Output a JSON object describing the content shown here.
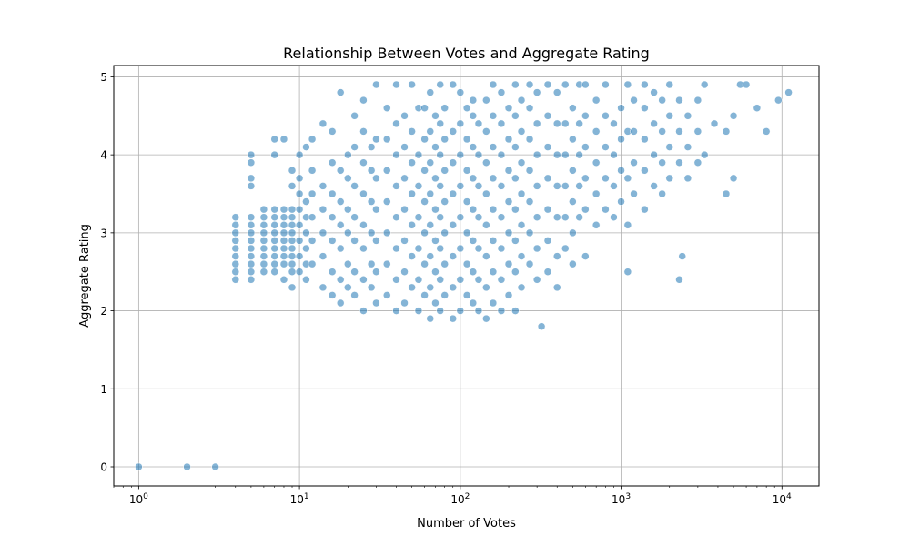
{
  "chart_data": {
    "type": "scatter",
    "title": "Relationship Between Votes and Aggregate Rating",
    "xlabel": "Number of Votes",
    "ylabel": "Aggregate Rating",
    "x_scale": "log",
    "xlim": [
      0.7,
      17000
    ],
    "ylim": [
      -0.245,
      5.145
    ],
    "grid": true,
    "marker_color": "#1f77b4",
    "marker_alpha": 0.55,
    "x_ticks": [
      {
        "value": 1,
        "base": "10",
        "exp": "0"
      },
      {
        "value": 10,
        "base": "10",
        "exp": "1"
      },
      {
        "value": 100,
        "base": "10",
        "exp": "2"
      },
      {
        "value": 1000,
        "base": "10",
        "exp": "3"
      },
      {
        "value": 10000,
        "base": "10",
        "exp": "4"
      }
    ],
    "y_ticks": [
      "0",
      "1",
      "2",
      "3",
      "4",
      "5"
    ],
    "points": [
      [
        1,
        0
      ],
      [
        2,
        0
      ],
      [
        3,
        0
      ],
      [
        4,
        2.4
      ],
      [
        4,
        2.5
      ],
      [
        4,
        2.6
      ],
      [
        4,
        2.7
      ],
      [
        4,
        2.8
      ],
      [
        4,
        2.9
      ],
      [
        4,
        3.0
      ],
      [
        4,
        3.1
      ],
      [
        4,
        3.2
      ],
      [
        5,
        2.4
      ],
      [
        5,
        2.5
      ],
      [
        5,
        2.6
      ],
      [
        5,
        2.7
      ],
      [
        5,
        2.8
      ],
      [
        5,
        2.9
      ],
      [
        5,
        3.0
      ],
      [
        5,
        3.1
      ],
      [
        5,
        3.2
      ],
      [
        5,
        3.6
      ],
      [
        5,
        3.7
      ],
      [
        5,
        3.9
      ],
      [
        5,
        4.0
      ],
      [
        6,
        2.5
      ],
      [
        6,
        2.6
      ],
      [
        6,
        2.7
      ],
      [
        6,
        2.8
      ],
      [
        6,
        2.9
      ],
      [
        6,
        3.0
      ],
      [
        6,
        3.1
      ],
      [
        6,
        3.2
      ],
      [
        6,
        3.3
      ],
      [
        7,
        2.5
      ],
      [
        7,
        2.6
      ],
      [
        7,
        2.7
      ],
      [
        7,
        2.8
      ],
      [
        7,
        2.9
      ],
      [
        7,
        3.0
      ],
      [
        7,
        3.1
      ],
      [
        7,
        3.2
      ],
      [
        7,
        3.3
      ],
      [
        7,
        4.0
      ],
      [
        7,
        4.2
      ],
      [
        8,
        2.4
      ],
      [
        8,
        2.6
      ],
      [
        8,
        2.7
      ],
      [
        8,
        2.8
      ],
      [
        8,
        2.9
      ],
      [
        8,
        3.0
      ],
      [
        8,
        3.1
      ],
      [
        8,
        3.2
      ],
      [
        8,
        3.3
      ],
      [
        8,
        4.2
      ],
      [
        9,
        2.3
      ],
      [
        9,
        2.5
      ],
      [
        9,
        2.6
      ],
      [
        9,
        2.7
      ],
      [
        9,
        2.8
      ],
      [
        9,
        2.9
      ],
      [
        9,
        3.0
      ],
      [
        9,
        3.1
      ],
      [
        9,
        3.2
      ],
      [
        9,
        3.3
      ],
      [
        9,
        3.6
      ],
      [
        9,
        3.8
      ],
      [
        10,
        2.5
      ],
      [
        10,
        2.7
      ],
      [
        10,
        2.9
      ],
      [
        10,
        3.1
      ],
      [
        10,
        3.3
      ],
      [
        10,
        3.5
      ],
      [
        10,
        3.7
      ],
      [
        10,
        4.0
      ],
      [
        11,
        2.4
      ],
      [
        11,
        2.6
      ],
      [
        11,
        2.8
      ],
      [
        11,
        3.0
      ],
      [
        11,
        3.2
      ],
      [
        11,
        3.4
      ],
      [
        11,
        4.1
      ],
      [
        12,
        2.6
      ],
      [
        12,
        2.9
      ],
      [
        12,
        3.2
      ],
      [
        12,
        3.5
      ],
      [
        12,
        3.8
      ],
      [
        12,
        4.2
      ],
      [
        14,
        2.3
      ],
      [
        14,
        2.7
      ],
      [
        14,
        3.0
      ],
      [
        14,
        3.3
      ],
      [
        14,
        3.6
      ],
      [
        14,
        4.4
      ],
      [
        16,
        2.2
      ],
      [
        16,
        2.5
      ],
      [
        16,
        2.9
      ],
      [
        16,
        3.2
      ],
      [
        16,
        3.5
      ],
      [
        16,
        3.9
      ],
      [
        16,
        4.3
      ],
      [
        18,
        2.1
      ],
      [
        18,
        2.4
      ],
      [
        18,
        2.8
      ],
      [
        18,
        3.1
      ],
      [
        18,
        3.4
      ],
      [
        18,
        3.8
      ],
      [
        18,
        4.8
      ],
      [
        20,
        2.3
      ],
      [
        20,
        2.6
      ],
      [
        20,
        3.0
      ],
      [
        20,
        3.3
      ],
      [
        20,
        3.7
      ],
      [
        20,
        4.0
      ],
      [
        22,
        2.2
      ],
      [
        22,
        2.5
      ],
      [
        22,
        2.9
      ],
      [
        22,
        3.2
      ],
      [
        22,
        3.6
      ],
      [
        22,
        4.1
      ],
      [
        22,
        4.5
      ],
      [
        25,
        2.0
      ],
      [
        25,
        2.4
      ],
      [
        25,
        2.8
      ],
      [
        25,
        3.1
      ],
      [
        25,
        3.5
      ],
      [
        25,
        3.9
      ],
      [
        25,
        4.3
      ],
      [
        25,
        4.7
      ],
      [
        28,
        2.3
      ],
      [
        28,
        2.6
      ],
      [
        28,
        3.0
      ],
      [
        28,
        3.4
      ],
      [
        28,
        3.8
      ],
      [
        28,
        4.1
      ],
      [
        30,
        2.1
      ],
      [
        30,
        2.5
      ],
      [
        30,
        2.9
      ],
      [
        30,
        3.3
      ],
      [
        30,
        3.7
      ],
      [
        30,
        4.2
      ],
      [
        30,
        4.9
      ],
      [
        35,
        2.2
      ],
      [
        35,
        2.6
      ],
      [
        35,
        3.0
      ],
      [
        35,
        3.4
      ],
      [
        35,
        3.8
      ],
      [
        35,
        4.2
      ],
      [
        35,
        4.6
      ],
      [
        40,
        2.0
      ],
      [
        40,
        2.4
      ],
      [
        40,
        2.8
      ],
      [
        40,
        3.2
      ],
      [
        40,
        3.6
      ],
      [
        40,
        4.0
      ],
      [
        40,
        4.4
      ],
      [
        40,
        4.9
      ],
      [
        45,
        2.1
      ],
      [
        45,
        2.5
      ],
      [
        45,
        2.9
      ],
      [
        45,
        3.3
      ],
      [
        45,
        3.7
      ],
      [
        45,
        4.1
      ],
      [
        45,
        4.5
      ],
      [
        50,
        2.3
      ],
      [
        50,
        2.7
      ],
      [
        50,
        3.1
      ],
      [
        50,
        3.5
      ],
      [
        50,
        3.9
      ],
      [
        50,
        4.3
      ],
      [
        50,
        4.9
      ],
      [
        55,
        2.0
      ],
      [
        55,
        2.4
      ],
      [
        55,
        2.8
      ],
      [
        55,
        3.2
      ],
      [
        55,
        3.6
      ],
      [
        55,
        4.0
      ],
      [
        55,
        4.6
      ],
      [
        60,
        2.2
      ],
      [
        60,
        2.6
      ],
      [
        60,
        3.0
      ],
      [
        60,
        3.4
      ],
      [
        60,
        3.8
      ],
      [
        60,
        4.2
      ],
      [
        60,
        4.6
      ],
      [
        65,
        1.9
      ],
      [
        65,
        2.3
      ],
      [
        65,
        2.7
      ],
      [
        65,
        3.1
      ],
      [
        65,
        3.5
      ],
      [
        65,
        3.9
      ],
      [
        65,
        4.3
      ],
      [
        65,
        4.8
      ],
      [
        70,
        2.1
      ],
      [
        70,
        2.5
      ],
      [
        70,
        2.9
      ],
      [
        70,
        3.3
      ],
      [
        70,
        3.7
      ],
      [
        70,
        4.1
      ],
      [
        70,
        4.5
      ],
      [
        75,
        2.0
      ],
      [
        75,
        2.4
      ],
      [
        75,
        2.8
      ],
      [
        75,
        3.2
      ],
      [
        75,
        3.6
      ],
      [
        75,
        4.0
      ],
      [
        75,
        4.4
      ],
      [
        75,
        4.9
      ],
      [
        80,
        2.2
      ],
      [
        80,
        2.6
      ],
      [
        80,
        3.0
      ],
      [
        80,
        3.4
      ],
      [
        80,
        3.8
      ],
      [
        80,
        4.2
      ],
      [
        80,
        4.6
      ],
      [
        90,
        1.9
      ],
      [
        90,
        2.3
      ],
      [
        90,
        2.7
      ],
      [
        90,
        3.1
      ],
      [
        90,
        3.5
      ],
      [
        90,
        3.9
      ],
      [
        90,
        4.3
      ],
      [
        90,
        4.9
      ],
      [
        100,
        2.0
      ],
      [
        100,
        2.4
      ],
      [
        100,
        2.8
      ],
      [
        100,
        3.2
      ],
      [
        100,
        3.6
      ],
      [
        100,
        4.0
      ],
      [
        100,
        4.4
      ],
      [
        100,
        4.8
      ],
      [
        110,
        2.2
      ],
      [
        110,
        2.6
      ],
      [
        110,
        3.0
      ],
      [
        110,
        3.4
      ],
      [
        110,
        3.8
      ],
      [
        110,
        4.2
      ],
      [
        110,
        4.6
      ],
      [
        120,
        2.1
      ],
      [
        120,
        2.5
      ],
      [
        120,
        2.9
      ],
      [
        120,
        3.3
      ],
      [
        120,
        3.7
      ],
      [
        120,
        4.1
      ],
      [
        120,
        4.5
      ],
      [
        120,
        4.7
      ],
      [
        130,
        2.0
      ],
      [
        130,
        2.4
      ],
      [
        130,
        2.8
      ],
      [
        130,
        3.2
      ],
      [
        130,
        3.6
      ],
      [
        130,
        4.0
      ],
      [
        130,
        4.4
      ],
      [
        145,
        1.9
      ],
      [
        145,
        2.3
      ],
      [
        145,
        2.7
      ],
      [
        145,
        3.1
      ],
      [
        145,
        3.5
      ],
      [
        145,
        3.9
      ],
      [
        145,
        4.3
      ],
      [
        145,
        4.7
      ],
      [
        160,
        2.1
      ],
      [
        160,
        2.5
      ],
      [
        160,
        2.9
      ],
      [
        160,
        3.3
      ],
      [
        160,
        3.7
      ],
      [
        160,
        4.1
      ],
      [
        160,
        4.5
      ],
      [
        160,
        4.9
      ],
      [
        180,
        2.0
      ],
      [
        180,
        2.4
      ],
      [
        180,
        2.8
      ],
      [
        180,
        3.2
      ],
      [
        180,
        3.6
      ],
      [
        180,
        4.0
      ],
      [
        180,
        4.4
      ],
      [
        180,
        4.8
      ],
      [
        200,
        2.2
      ],
      [
        200,
        2.6
      ],
      [
        200,
        3.0
      ],
      [
        200,
        3.4
      ],
      [
        200,
        3.8
      ],
      [
        200,
        4.2
      ],
      [
        200,
        4.6
      ],
      [
        220,
        2.0
      ],
      [
        220,
        2.5
      ],
      [
        220,
        2.9
      ],
      [
        220,
        3.3
      ],
      [
        220,
        3.7
      ],
      [
        220,
        4.1
      ],
      [
        220,
        4.5
      ],
      [
        220,
        4.9
      ],
      [
        240,
        2.3
      ],
      [
        240,
        2.7
      ],
      [
        240,
        3.1
      ],
      [
        240,
        3.5
      ],
      [
        240,
        3.9
      ],
      [
        240,
        4.3
      ],
      [
        240,
        4.7
      ],
      [
        270,
        2.6
      ],
      [
        270,
        3.0
      ],
      [
        270,
        3.4
      ],
      [
        270,
        3.8
      ],
      [
        270,
        4.2
      ],
      [
        270,
        4.6
      ],
      [
        270,
        4.9
      ],
      [
        300,
        2.4
      ],
      [
        300,
        2.8
      ],
      [
        300,
        3.2
      ],
      [
        300,
        3.6
      ],
      [
        300,
        4.0
      ],
      [
        300,
        4.4
      ],
      [
        300,
        4.8
      ],
      [
        320,
        1.8
      ],
      [
        350,
        2.5
      ],
      [
        350,
        2.9
      ],
      [
        350,
        3.3
      ],
      [
        350,
        3.7
      ],
      [
        350,
        4.1
      ],
      [
        350,
        4.5
      ],
      [
        350,
        4.9
      ],
      [
        400,
        2.3
      ],
      [
        400,
        2.7
      ],
      [
        400,
        3.2
      ],
      [
        400,
        3.6
      ],
      [
        400,
        4.0
      ],
      [
        400,
        4.4
      ],
      [
        400,
        4.8
      ],
      [
        450,
        2.8
      ],
      [
        450,
        3.2
      ],
      [
        450,
        3.6
      ],
      [
        450,
        4.0
      ],
      [
        450,
        4.4
      ],
      [
        450,
        4.9
      ],
      [
        500,
        2.6
      ],
      [
        500,
        3.0
      ],
      [
        500,
        3.4
      ],
      [
        500,
        3.8
      ],
      [
        500,
        4.2
      ],
      [
        500,
        4.6
      ],
      [
        550,
        3.2
      ],
      [
        550,
        3.6
      ],
      [
        550,
        4.0
      ],
      [
        550,
        4.4
      ],
      [
        550,
        4.9
      ],
      [
        600,
        2.7
      ],
      [
        600,
        3.3
      ],
      [
        600,
        3.7
      ],
      [
        600,
        4.1
      ],
      [
        600,
        4.5
      ],
      [
        600,
        4.9
      ],
      [
        700,
        3.1
      ],
      [
        700,
        3.5
      ],
      [
        700,
        3.9
      ],
      [
        700,
        4.3
      ],
      [
        700,
        4.7
      ],
      [
        800,
        3.3
      ],
      [
        800,
        3.7
      ],
      [
        800,
        4.1
      ],
      [
        800,
        4.5
      ],
      [
        800,
        4.9
      ],
      [
        900,
        3.2
      ],
      [
        900,
        3.6
      ],
      [
        900,
        4.0
      ],
      [
        900,
        4.4
      ],
      [
        1000,
        3.4
      ],
      [
        1000,
        3.8
      ],
      [
        1000,
        4.2
      ],
      [
        1000,
        4.6
      ],
      [
        1100,
        2.5
      ],
      [
        1100,
        3.1
      ],
      [
        1100,
        3.7
      ],
      [
        1100,
        4.3
      ],
      [
        1100,
        4.9
      ],
      [
        1200,
        3.5
      ],
      [
        1200,
        3.9
      ],
      [
        1200,
        4.3
      ],
      [
        1200,
        4.7
      ],
      [
        1400,
        3.3
      ],
      [
        1400,
        3.8
      ],
      [
        1400,
        4.2
      ],
      [
        1400,
        4.6
      ],
      [
        1400,
        4.9
      ],
      [
        1600,
        3.6
      ],
      [
        1600,
        4.0
      ],
      [
        1600,
        4.4
      ],
      [
        1600,
        4.8
      ],
      [
        1800,
        3.5
      ],
      [
        1800,
        3.9
      ],
      [
        1800,
        4.3
      ],
      [
        1800,
        4.7
      ],
      [
        2000,
        3.7
      ],
      [
        2000,
        4.1
      ],
      [
        2000,
        4.5
      ],
      [
        2000,
        4.9
      ],
      [
        2300,
        2.4
      ],
      [
        2300,
        3.9
      ],
      [
        2300,
        4.3
      ],
      [
        2300,
        4.7
      ],
      [
        2400,
        2.7
      ],
      [
        2600,
        3.7
      ],
      [
        2600,
        4.1
      ],
      [
        2600,
        4.5
      ],
      [
        3000,
        3.9
      ],
      [
        3000,
        4.3
      ],
      [
        3000,
        4.7
      ],
      [
        3300,
        4.0
      ],
      [
        3300,
        4.9
      ],
      [
        3800,
        4.4
      ],
      [
        4500,
        3.5
      ],
      [
        4500,
        4.3
      ],
      [
        5000,
        3.7
      ],
      [
        5000,
        4.5
      ],
      [
        5500,
        4.9
      ],
      [
        6000,
        4.9
      ],
      [
        7000,
        4.6
      ],
      [
        8000,
        4.3
      ],
      [
        9500,
        4.7
      ],
      [
        11000,
        4.8
      ]
    ]
  }
}
